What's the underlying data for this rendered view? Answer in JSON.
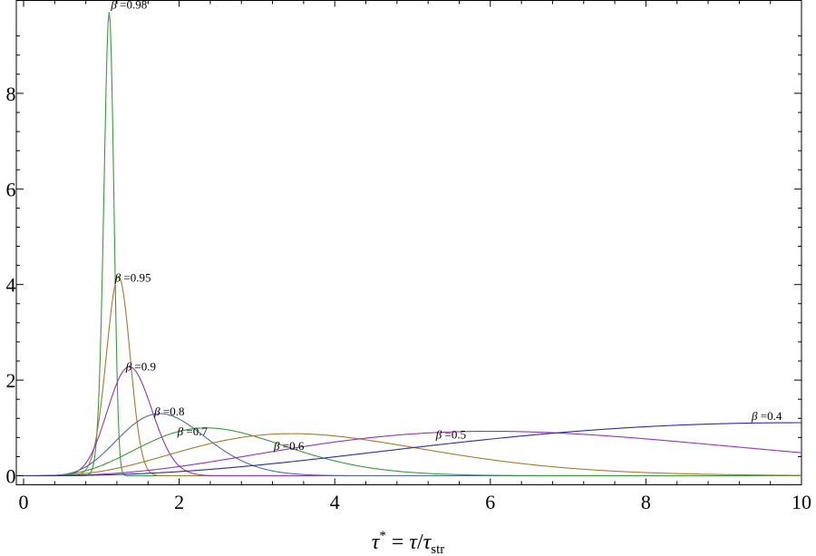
{
  "chart_data": {
    "type": "line",
    "title": "",
    "ylabel": "",
    "xlabel": {
      "tau": "τ",
      "star": "*",
      "equals": " = ",
      "slash": "/",
      "sub": "str"
    },
    "xlim": [
      0,
      10
    ],
    "ylim": [
      0,
      9.8
    ],
    "x_ticks": [
      "0",
      "2",
      "4",
      "6",
      "8",
      "10"
    ],
    "y_ticks": [
      "0",
      "2",
      "4",
      "6",
      "8"
    ],
    "x_tick_values": [
      0,
      2,
      4,
      6,
      8,
      10
    ],
    "y_tick_values": [
      0,
      2,
      4,
      6,
      8
    ],
    "grid": false,
    "legend": "none",
    "label_symbol": "β",
    "series": [
      {
        "label": "=0.98",
        "beta": 0.98,
        "peak_x": 1.1,
        "peak_y": 9.7,
        "color": "#3a9a3a"
      },
      {
        "label": "=0.95",
        "beta": 0.95,
        "peak_x": 1.22,
        "peak_y": 4.17,
        "color": "#a37a2d"
      },
      {
        "label": "=0.9",
        "beta": 0.9,
        "peak_x": 1.36,
        "peak_y": 2.28,
        "color": "#8f36b8"
      },
      {
        "label": "=0.8",
        "beta": 0.8,
        "peak_x": 1.75,
        "peak_y": 1.3,
        "color": "#4c6aa8"
      },
      {
        "label": "=0.7",
        "beta": 0.7,
        "peak_x": 2.35,
        "peak_y": 1.0,
        "color": "#3a9a3a"
      },
      {
        "label": "=0.6",
        "beta": 0.6,
        "peak_x": 3.45,
        "peak_y": 0.88,
        "color": "#a37a2d"
      },
      {
        "label": "=0.5",
        "beta": 0.5,
        "peak_x": 6.0,
        "peak_y": 0.93,
        "color": "#8f36b8"
      },
      {
        "label": "=0.4",
        "beta": 0.4,
        "peak_x": 10.0,
        "peak_y": 1.11,
        "color": "#2b2b9e"
      }
    ]
  }
}
